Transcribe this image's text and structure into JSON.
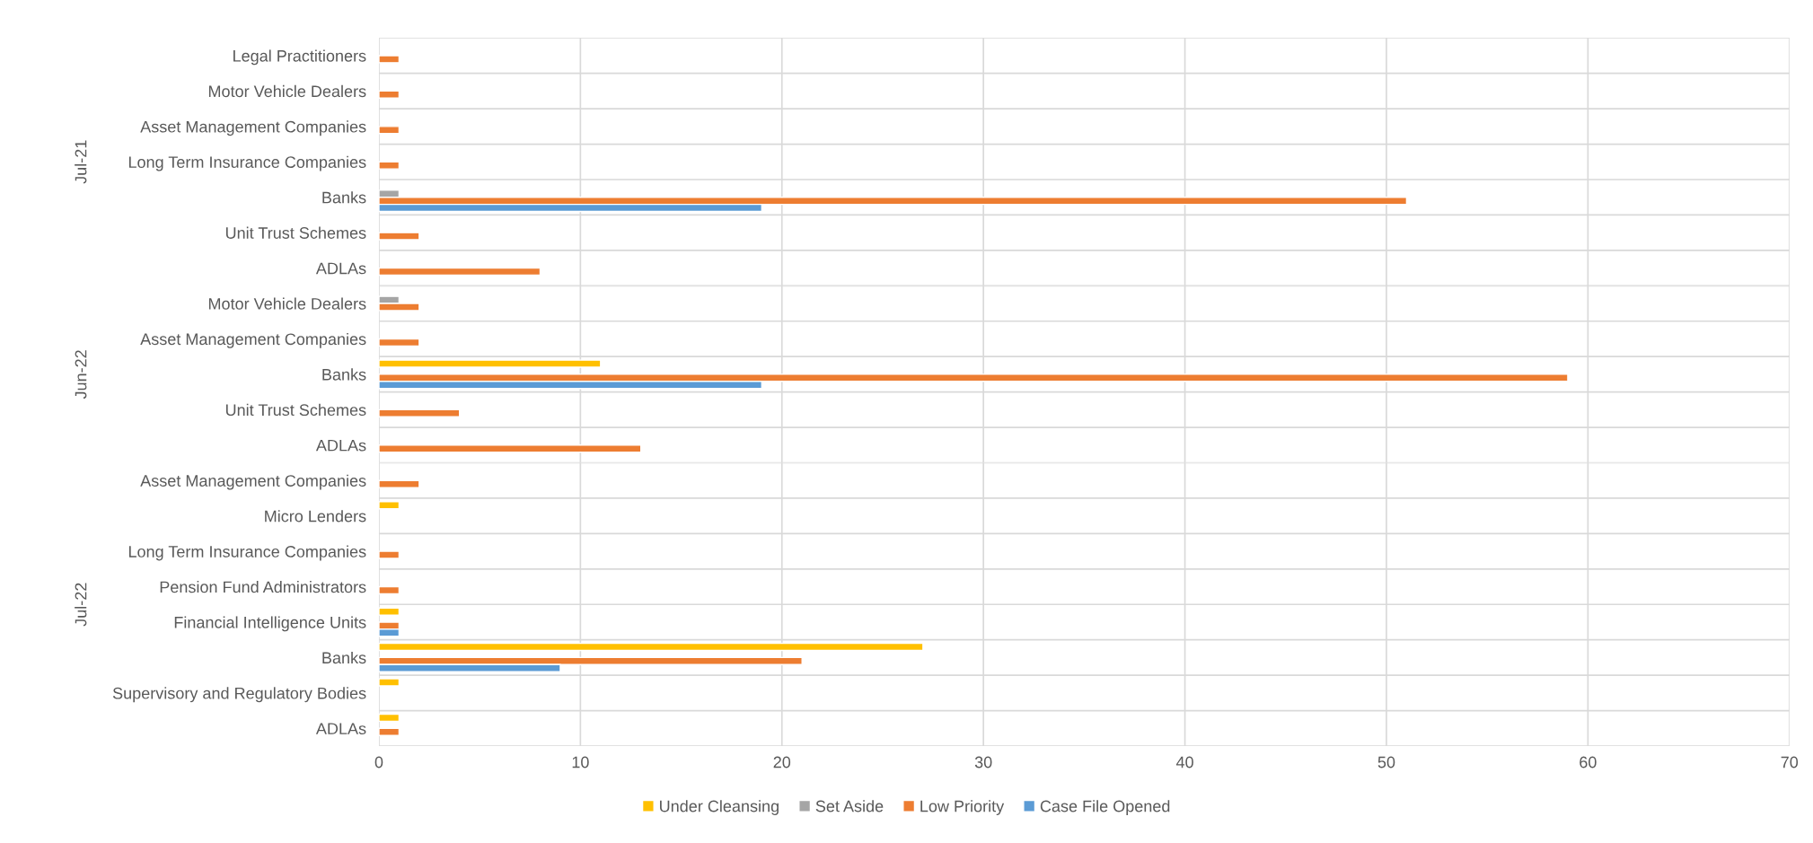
{
  "chart_data": [
    {
      "type": "bar",
      "orientation": "horizontal",
      "ylabel": "Jul-21",
      "categories": [
        "Legal Practitioners",
        "Motor Vehicle Dealers",
        "Asset Management Companies",
        "Long Term Insurance Companies",
        "Banks",
        "Unit Trust Schemes",
        "ADLAs"
      ],
      "series": [
        {
          "color": "#ffc000",
          "values": [
            null,
            null,
            null,
            null,
            null,
            null,
            null
          ]
        },
        {
          "color": "#a5a5a5",
          "values": [
            null,
            null,
            null,
            null,
            1,
            null,
            null
          ]
        },
        {
          "color": "#ed7d31",
          "values": [
            1,
            1,
            1,
            1,
            51,
            2,
            8
          ]
        },
        {
          "color": "#5b9bd5",
          "values": [
            null,
            null,
            null,
            null,
            19,
            null,
            null
          ]
        }
      ],
      "xlim": [
        0,
        70
      ],
      "xticks": [
        0,
        10,
        20,
        30,
        40,
        50,
        60,
        70
      ],
      "grid": true,
      "tick_labels": "y"
    },
    {
      "type": "bar",
      "orientation": "horizontal",
      "ylabel": "Jun-22",
      "categories": [
        "Motor Vehicle Dealers",
        "Asset Management Companies",
        "Banks",
        "Unit Trust Schemes",
        "ADLAs"
      ],
      "series": [
        {
          "color": "#ffc000",
          "values": [
            null,
            null,
            11,
            null,
            null
          ]
        },
        {
          "color": "#a5a5a5",
          "values": [
            1,
            null,
            null,
            null,
            null
          ]
        },
        {
          "color": "#ed7d31",
          "values": [
            2,
            2,
            59,
            4,
            13
          ]
        },
        {
          "color": "#5b9bd5",
          "values": [
            null,
            null,
            19,
            null,
            null
          ]
        }
      ],
      "xlim": [
        0,
        70
      ],
      "xticks": [
        0,
        10,
        20,
        30,
        40,
        50,
        60,
        70
      ],
      "grid": true,
      "tick_labels": "y"
    },
    {
      "type": "bar",
      "orientation": "horizontal",
      "ylabel": "Jul-22",
      "categories": [
        "Asset Management Companies",
        "Micro Lenders",
        "Long Term Insurance Companies",
        "Pension Fund Administrators",
        "Financial Intelligence Units",
        "Banks",
        "Supervisory and Regulatory Bodies",
        "ADLAs"
      ],
      "series": [
        {
          "name": "Under Cleansing",
          "color": "#ffc000",
          "values": [
            null,
            1,
            null,
            null,
            1,
            27,
            1,
            1
          ]
        },
        {
          "name": "Set Aside",
          "color": "#a5a5a5",
          "values": [
            null,
            null,
            null,
            null,
            null,
            null,
            null,
            null
          ]
        },
        {
          "name": "Low Priority",
          "color": "#ed7d31",
          "values": [
            2,
            null,
            1,
            1,
            1,
            21,
            null,
            1
          ]
        },
        {
          "name": "Case File Opened",
          "color": "#5b9bd5",
          "values": [
            null,
            null,
            null,
            null,
            1,
            9,
            null,
            null
          ]
        }
      ],
      "xlim": [
        0,
        70
      ],
      "xticks": [
        0,
        10,
        20,
        30,
        40,
        50,
        60,
        70
      ],
      "grid": true,
      "legend": "bottom"
    }
  ]
}
